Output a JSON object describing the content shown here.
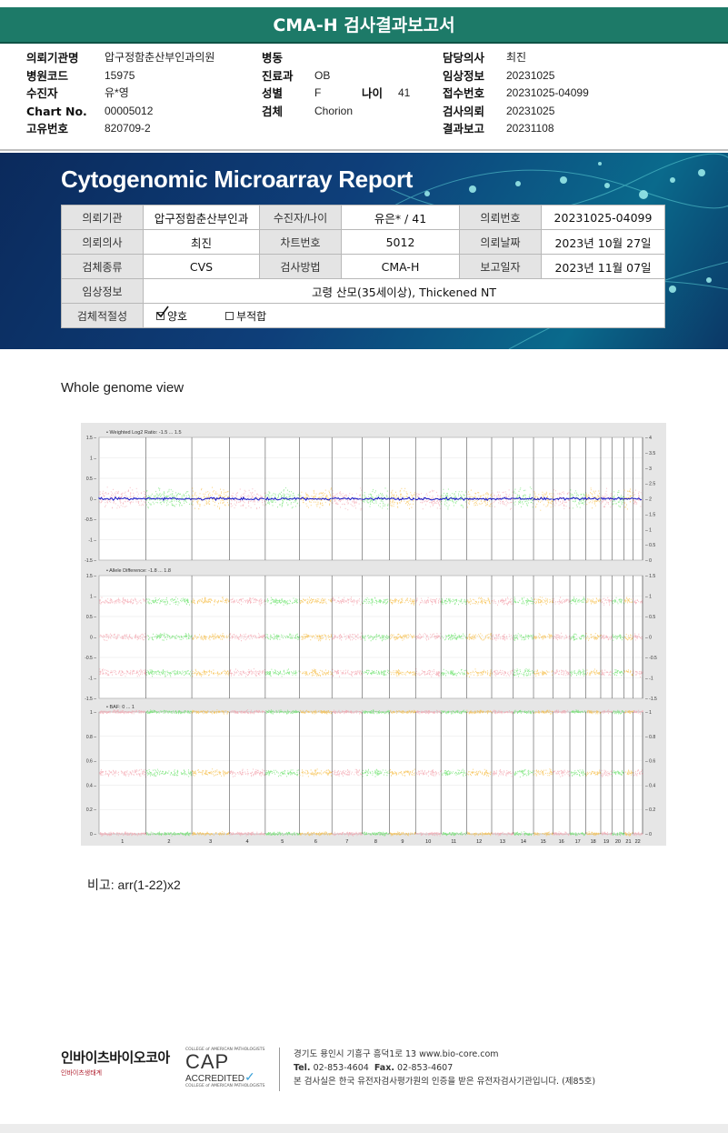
{
  "title": "CMA-H 검사결과보고서",
  "info_col1": [
    {
      "label": "의뢰기관명",
      "value": "압구정함춘산부인과의원"
    },
    {
      "label": "병원코드",
      "value": "15975"
    },
    {
      "label": "수진자",
      "value": "유*영"
    },
    {
      "label": "Chart No.",
      "value": "00005012"
    },
    {
      "label": "고유번호",
      "value": "820709-2"
    }
  ],
  "info_col2": [
    {
      "label": "병동",
      "value": ""
    },
    {
      "label": "진료과",
      "value": "OB"
    },
    {
      "label": "성별",
      "value": "F"
    },
    {
      "label": "검체",
      "value": "Chorion"
    }
  ],
  "info_age": {
    "label": "나이",
    "value": "41"
  },
  "info_col3": [
    {
      "label": "담당의사",
      "value": "최진"
    },
    {
      "label": "임상정보",
      "value": "20231025"
    },
    {
      "label": "접수번호",
      "value": "20231025-04099"
    },
    {
      "label": "검사의뢰",
      "value": "20231025"
    },
    {
      "label": "결과보고",
      "value": "20231108"
    }
  ],
  "report_title": "Cytogenomic Microarray Report",
  "report_table": {
    "r1": [
      "의뢰기관",
      "압구정함춘산부인과",
      "수진자/나이",
      "유은* / 41",
      "의뢰번호",
      "20231025-04099"
    ],
    "r2": [
      "의뢰의사",
      "최진",
      "차트번호",
      "5012",
      "의뢰날짜",
      "2023년 10월 27일"
    ],
    "r3": [
      "검체종류",
      "CVS",
      "검사방법",
      "CMA-H",
      "보고일자",
      "2023년 11월 07일"
    ],
    "r4": [
      "임상정보",
      "고령 산모(35세이상), Thickened NT"
    ],
    "r5": {
      "label": "검체적절성",
      "opt1": "양호",
      "opt2": "부적합",
      "checked": "양호"
    }
  },
  "whole_genome_title": "Whole genome view",
  "chart_data": {
    "type": "scatter",
    "panels": [
      {
        "title": "Weighted Log2 Ratio: -1.5 ... 1.5",
        "left_ticks": [
          "1.5",
          "1",
          "0.5",
          "0",
          "-0.5",
          "-1",
          "-1.5"
        ],
        "right_ticks": [
          "4",
          "3.5",
          "3",
          "2.5",
          "2",
          "1.5",
          "1",
          "0.5",
          "0"
        ]
      },
      {
        "title": "Allele Difference: -1.8 ... 1.8",
        "left_ticks": [
          "1.5",
          "1",
          "0.5",
          "0",
          "-0.5",
          "-1",
          "-1.5"
        ],
        "right_ticks": [
          "1.5",
          "1",
          "0.5",
          "0",
          "-0.5",
          "-1",
          "-1.5"
        ]
      },
      {
        "title": "BAF: 0 ... 1",
        "left_ticks": [
          "1",
          "0.8",
          "0.6",
          "0.4",
          "0.2",
          "0"
        ],
        "right_ticks": [
          "1",
          "0.8",
          "0.6",
          "0.4",
          "0.2",
          "0"
        ]
      }
    ],
    "chromosomes": [
      "1",
      "2",
      "3",
      "4",
      "5",
      "6",
      "7",
      "8",
      "9",
      "10",
      "11",
      "12",
      "13",
      "14",
      "15",
      "16",
      "17",
      "18",
      "19",
      "20",
      "21",
      "22"
    ],
    "colors": {
      "pink": "#f4a6b0",
      "green": "#6ee36e",
      "orange": "#f7bf4a",
      "line": "#1414c8"
    }
  },
  "remark": "비고: arr(1-22)x2",
  "footer": {
    "logo": "인바이츠바이오코아",
    "logo_sub": "인바이츠생태계",
    "cap_top": "COLLEGE of AMERICAN PATHOLOGISTS",
    "cap_big": "CAP",
    "cap_acc": "ACCREDITED",
    "cap_bottom": "COLLEGE of AMERICAN PATHOLOGISTS",
    "addr1": "경기도 용인시 기흥구 흥덕1로 13   www.bio-core.com",
    "tel_label": "Tel.",
    "tel": "02-853-4604",
    "fax_label": "Fax.",
    "fax": "02-853-4607",
    "addr3": "본 검사실은 한국 유전자검사평가원의 인증을 받은 유전자검사기관입니다. (제85호)"
  }
}
